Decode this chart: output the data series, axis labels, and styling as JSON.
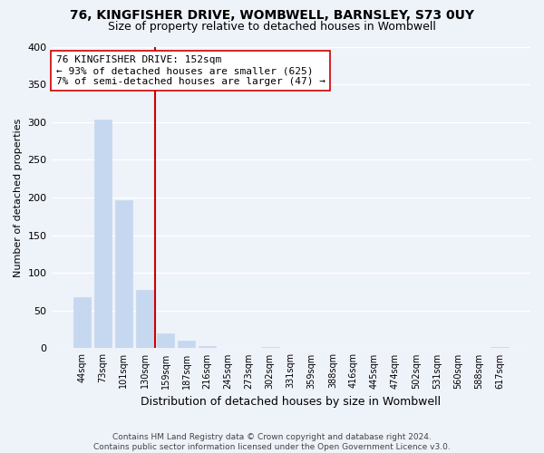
{
  "title": "76, KINGFISHER DRIVE, WOMBWELL, BARNSLEY, S73 0UY",
  "subtitle": "Size of property relative to detached houses in Wombwell",
  "xlabel": "Distribution of detached houses by size in Wombwell",
  "ylabel": "Number of detached properties",
  "bar_labels": [
    "44sqm",
    "73sqm",
    "101sqm",
    "130sqm",
    "159sqm",
    "187sqm",
    "216sqm",
    "245sqm",
    "273sqm",
    "302sqm",
    "331sqm",
    "359sqm",
    "388sqm",
    "416sqm",
    "445sqm",
    "474sqm",
    "502sqm",
    "531sqm",
    "560sqm",
    "588sqm",
    "617sqm"
  ],
  "bar_values": [
    68,
    303,
    196,
    78,
    20,
    10,
    3,
    0,
    0,
    2,
    0,
    0,
    0,
    0,
    0,
    0,
    0,
    0,
    0,
    0,
    2
  ],
  "bar_color": "#c5d8ef",
  "bar_edge_color": "#c5d8ef",
  "highlight_line_color": "#cc0000",
  "annotation_line1": "76 KINGFISHER DRIVE: 152sqm",
  "annotation_line2": "← 93% of detached houses are smaller (625)",
  "annotation_line3": "7% of semi-detached houses are larger (47) →",
  "annotation_box_facecolor": "#ffffff",
  "annotation_box_edgecolor": "#cc0000",
  "ylim": [
    0,
    400
  ],
  "yticks": [
    0,
    50,
    100,
    150,
    200,
    250,
    300,
    350,
    400
  ],
  "footer_line1": "Contains HM Land Registry data © Crown copyright and database right 2024.",
  "footer_line2": "Contains public sector information licensed under the Open Government Licence v3.0.",
  "title_fontsize": 10,
  "subtitle_fontsize": 9,
  "xlabel_fontsize": 9,
  "ylabel_fontsize": 8,
  "annotation_fontsize": 8,
  "footer_fontsize": 6.5,
  "background_color": "#eef2f9"
}
